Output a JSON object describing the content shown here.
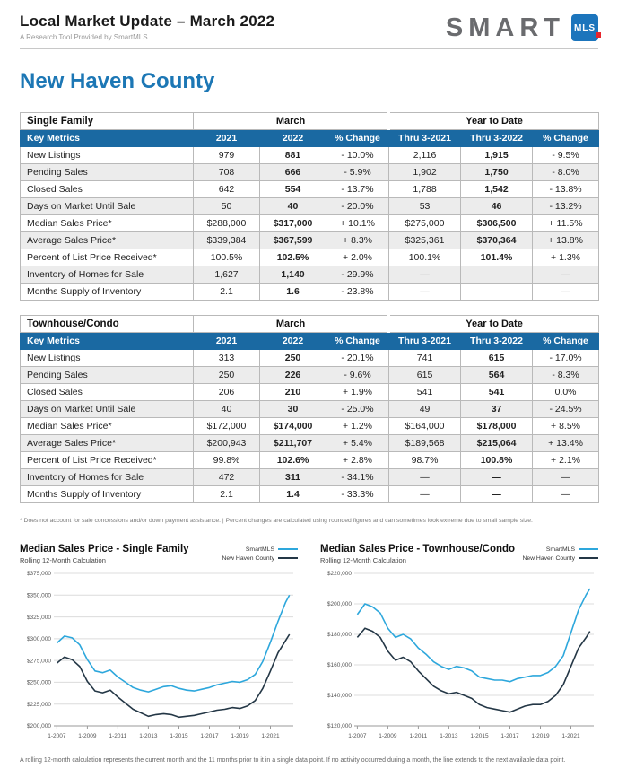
{
  "header": {
    "title": "Local Market Update – March 2022",
    "subtitle": "A Research Tool Provided by SmartMLS",
    "logo_text": "SMART",
    "logo_box": "MLS"
  },
  "region_title": "New Haven County",
  "colors": {
    "accent_blue": "#1c77b5",
    "table_header_blue": "#1a69a2",
    "smartmls_line": "#2da7dc",
    "county_line": "#243746",
    "logo_red": "#e8262d"
  },
  "tables": [
    {
      "title": "Single Family",
      "group1": "March",
      "group2": "Year to Date",
      "columns": [
        "Key Metrics",
        "2021",
        "2022",
        "% Change",
        "Thru 3-2021",
        "Thru 3-2022",
        "% Change"
      ],
      "rows": [
        [
          "New Listings",
          "979",
          "881",
          "- 10.0%",
          "2,116",
          "1,915",
          "- 9.5%"
        ],
        [
          "Pending Sales",
          "708",
          "666",
          "- 5.9%",
          "1,902",
          "1,750",
          "- 8.0%"
        ],
        [
          "Closed Sales",
          "642",
          "554",
          "- 13.7%",
          "1,788",
          "1,542",
          "- 13.8%"
        ],
        [
          "Days on Market Until Sale",
          "50",
          "40",
          "- 20.0%",
          "53",
          "46",
          "- 13.2%"
        ],
        [
          "Median Sales Price*",
          "$288,000",
          "$317,000",
          "+ 10.1%",
          "$275,000",
          "$306,500",
          "+ 11.5%"
        ],
        [
          "Average Sales Price*",
          "$339,384",
          "$367,599",
          "+ 8.3%",
          "$325,361",
          "$370,364",
          "+ 13.8%"
        ],
        [
          "Percent of List Price Received*",
          "100.5%",
          "102.5%",
          "+ 2.0%",
          "100.1%",
          "101.4%",
          "+ 1.3%"
        ],
        [
          "Inventory of Homes for Sale",
          "1,627",
          "1,140",
          "- 29.9%",
          "—",
          "—",
          "—"
        ],
        [
          "Months Supply of Inventory",
          "2.1",
          "1.6",
          "- 23.8%",
          "—",
          "—",
          "—"
        ]
      ]
    },
    {
      "title": "Townhouse/Condo",
      "group1": "March",
      "group2": "Year to Date",
      "columns": [
        "Key Metrics",
        "2021",
        "2022",
        "% Change",
        "Thru 3-2021",
        "Thru 3-2022",
        "% Change"
      ],
      "rows": [
        [
          "New Listings",
          "313",
          "250",
          "- 20.1%",
          "741",
          "615",
          "- 17.0%"
        ],
        [
          "Pending Sales",
          "250",
          "226",
          "- 9.6%",
          "615",
          "564",
          "- 8.3%"
        ],
        [
          "Closed Sales",
          "206",
          "210",
          "+ 1.9%",
          "541",
          "541",
          "0.0%"
        ],
        [
          "Days on Market Until Sale",
          "40",
          "30",
          "- 25.0%",
          "49",
          "37",
          "- 24.5%"
        ],
        [
          "Median Sales Price*",
          "$172,000",
          "$174,000",
          "+ 1.2%",
          "$164,000",
          "$178,000",
          "+ 8.5%"
        ],
        [
          "Average Sales Price*",
          "$200,943",
          "$211,707",
          "+ 5.4%",
          "$189,568",
          "$215,064",
          "+ 13.4%"
        ],
        [
          "Percent of List Price Received*",
          "99.8%",
          "102.6%",
          "+ 2.8%",
          "98.7%",
          "100.8%",
          "+ 2.1%"
        ],
        [
          "Inventory of Homes for Sale",
          "472",
          "311",
          "- 34.1%",
          "—",
          "—",
          "—"
        ],
        [
          "Months Supply of Inventory",
          "2.1",
          "1.4",
          "- 33.3%",
          "—",
          "—",
          "—"
        ]
      ]
    }
  ],
  "table_footnote": "* Does not account for sale concessions and/or down payment assistance. | Percent changes are calculated using rounded figures and can sometimes look extreme due to small sample size.",
  "chart_data": [
    {
      "type": "line",
      "title": "Median Sales Price - Single Family",
      "subtitle": "Rolling 12-Month Calculation",
      "legend": [
        "SmartMLS",
        "New Haven County"
      ],
      "legend_position": "top-right",
      "grid": true,
      "xlim": [
        2006.8,
        2022.5
      ],
      "ylim": [
        200000,
        375000
      ],
      "y_ticks": [
        200000,
        225000,
        250000,
        275000,
        300000,
        325000,
        350000,
        375000
      ],
      "x_tick_years": [
        2007,
        2009,
        2011,
        2013,
        2015,
        2017,
        2019,
        2021
      ],
      "x_tick_labels": [
        "1-2007",
        "1-2009",
        "1-2011",
        "1-2013",
        "1-2015",
        "1-2017",
        "1-2019",
        "1-2021"
      ],
      "x": [
        2007,
        2007.5,
        2008,
        2008.5,
        2009,
        2009.5,
        2010,
        2010.5,
        2011,
        2011.5,
        2012,
        2012.5,
        2013,
        2013.5,
        2014,
        2014.5,
        2015,
        2015.5,
        2016,
        2016.5,
        2017,
        2017.5,
        2018,
        2018.5,
        2019,
        2019.5,
        2020,
        2020.5,
        2021,
        2021.5,
        2022,
        2022.25
      ],
      "series": [
        {
          "name": "SmartMLS",
          "color": "#2da7dc",
          "values": [
            295000,
            303000,
            301000,
            293000,
            276000,
            263000,
            261000,
            264000,
            256000,
            250000,
            244000,
            241000,
            239000,
            242000,
            245000,
            246000,
            243000,
            241000,
            240000,
            242000,
            244000,
            247000,
            249000,
            251000,
            250000,
            253000,
            259000,
            274000,
            296000,
            320000,
            342000,
            350000
          ]
        },
        {
          "name": "New Haven County",
          "color": "#243746",
          "values": [
            272000,
            279000,
            276000,
            268000,
            251000,
            240000,
            238000,
            241000,
            233000,
            226000,
            219000,
            215000,
            211000,
            213000,
            214000,
            213000,
            210000,
            211000,
            212000,
            214000,
            216000,
            218000,
            219000,
            221000,
            220000,
            223000,
            229000,
            243000,
            263000,
            284000,
            298000,
            305000
          ]
        }
      ]
    },
    {
      "type": "line",
      "title": "Median Sales Price - Townhouse/Condo",
      "subtitle": "Rolling 12-Month Calculation",
      "legend": [
        "SmartMLS",
        "New Haven County"
      ],
      "legend_position": "top-right",
      "grid": true,
      "xlim": [
        2006.8,
        2022.5
      ],
      "ylim": [
        120000,
        220000
      ],
      "y_ticks": [
        120000,
        140000,
        160000,
        180000,
        200000,
        220000
      ],
      "x_tick_years": [
        2007,
        2009,
        2011,
        2013,
        2015,
        2017,
        2019,
        2021
      ],
      "x_tick_labels": [
        "1-2007",
        "1-2009",
        "1-2011",
        "1-2013",
        "1-2015",
        "1-2017",
        "1-2019",
        "1-2021"
      ],
      "x": [
        2007,
        2007.5,
        2008,
        2008.5,
        2009,
        2009.5,
        2010,
        2010.5,
        2011,
        2011.5,
        2012,
        2012.5,
        2013,
        2013.5,
        2014,
        2014.5,
        2015,
        2015.5,
        2016,
        2016.5,
        2017,
        2017.5,
        2018,
        2018.5,
        2019,
        2019.5,
        2020,
        2020.5,
        2021,
        2021.5,
        2022,
        2022.25
      ],
      "series": [
        {
          "name": "SmartMLS",
          "color": "#2da7dc",
          "values": [
            193000,
            200000,
            198000,
            194000,
            184000,
            178000,
            180000,
            177000,
            171000,
            167000,
            162000,
            159000,
            157000,
            159000,
            158000,
            156000,
            152000,
            151000,
            150000,
            150000,
            149000,
            151000,
            152000,
            153000,
            153000,
            155000,
            159000,
            166000,
            181000,
            196000,
            206000,
            210000
          ]
        },
        {
          "name": "New Haven County",
          "color": "#243746",
          "values": [
            178000,
            184000,
            182000,
            178000,
            169000,
            163000,
            165000,
            162000,
            156000,
            151000,
            146000,
            143000,
            141000,
            142000,
            140000,
            138000,
            134000,
            132000,
            131000,
            130000,
            129000,
            131000,
            133000,
            134000,
            134000,
            136000,
            140000,
            147000,
            159000,
            171000,
            178000,
            182000
          ]
        }
      ]
    }
  ],
  "bottom_footnote": "A rolling 12-month calculation represents the current month and the 11 months prior to it in a single data point. If no activity occurred during a month, the line extends to the next available data point."
}
